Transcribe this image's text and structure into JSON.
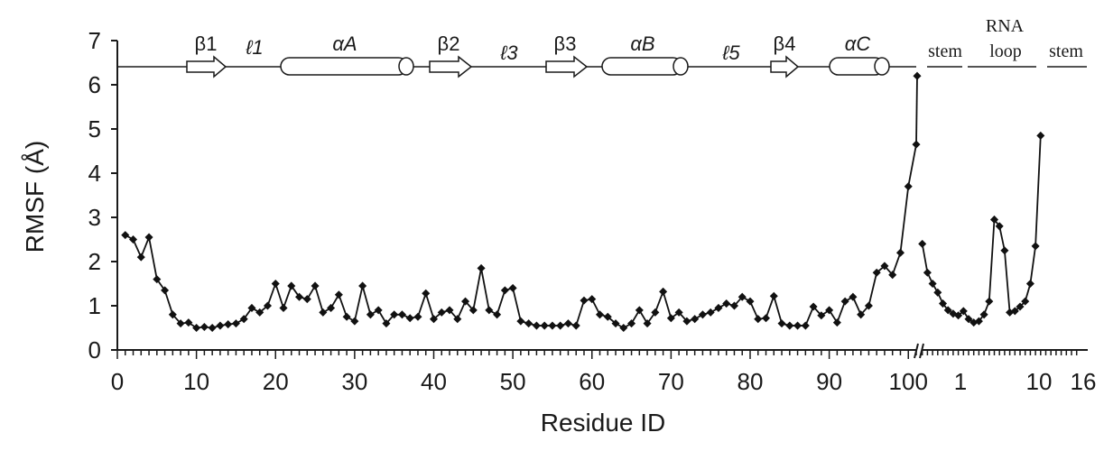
{
  "chart_data": {
    "type": "line",
    "ylabel": "RMSF (Å)",
    "xlabel": "Residue ID",
    "ylim": [
      0,
      7
    ],
    "yticks": [
      0,
      1,
      2,
      3,
      4,
      5,
      6,
      7
    ],
    "grid": false,
    "protein": {
      "xlim": [
        0,
        101
      ],
      "xticks": [
        0,
        10,
        20,
        30,
        40,
        50,
        60,
        70,
        80,
        90,
        100
      ],
      "x": [
        1,
        2,
        3,
        4,
        5,
        6,
        7,
        8,
        9,
        10,
        11,
        12,
        13,
        14,
        15,
        16,
        17,
        18,
        19,
        20,
        21,
        22,
        23,
        24,
        25,
        26,
        27,
        28,
        29,
        30,
        31,
        32,
        33,
        34,
        35,
        36,
        37,
        38,
        39,
        40,
        41,
        42,
        43,
        44,
        45,
        46,
        47,
        48,
        49,
        50,
        51,
        52,
        53,
        54,
        55,
        56,
        57,
        58,
        59,
        60,
        61,
        62,
        63,
        64,
        65,
        66,
        67,
        68,
        69,
        70,
        71,
        72,
        73,
        74,
        75,
        76,
        77,
        78,
        79,
        80,
        81,
        82,
        83,
        84,
        85,
        86,
        87,
        88,
        89,
        90,
        91,
        92,
        93,
        94,
        95,
        96,
        97,
        98,
        99,
        100,
        101
      ],
      "y": [
        2.6,
        2.5,
        2.1,
        2.55,
        1.6,
        1.35,
        0.8,
        0.6,
        0.62,
        0.5,
        0.52,
        0.5,
        0.55,
        0.58,
        0.6,
        0.7,
        0.95,
        0.85,
        1.0,
        1.5,
        0.95,
        1.45,
        1.2,
        1.15,
        1.45,
        0.85,
        0.95,
        1.25,
        0.75,
        0.65,
        1.45,
        0.8,
        0.9,
        0.6,
        0.8,
        0.8,
        0.72,
        0.75,
        1.28,
        0.7,
        0.85,
        0.9,
        0.7,
        1.1,
        0.9,
        1.85,
        0.9,
        0.8,
        1.35,
        1.4,
        0.65,
        0.6,
        0.55,
        0.55,
        0.55,
        0.55,
        0.6,
        0.55,
        1.12,
        1.15,
        0.8,
        0.75,
        0.6,
        0.5,
        0.6,
        0.9,
        0.6,
        0.85,
        1.32,
        0.72,
        0.85,
        0.65,
        0.7,
        0.8,
        0.85,
        0.95,
        1.05,
        1.0,
        1.2,
        1.1,
        0.7,
        0.72,
        1.22,
        0.6,
        0.55,
        0.55,
        0.55,
        0.98,
        0.78,
        0.9,
        0.62,
        1.1,
        1.2,
        0.8,
        1.0,
        1.75,
        1.9,
        1.7,
        2.2,
        3.7,
        4.65
      ]
    },
    "rna": {
      "xticks": [
        1,
        10,
        16
      ],
      "x": [
        1,
        2,
        3,
        4,
        5,
        6,
        7,
        8,
        9,
        10,
        11,
        12,
        13,
        14,
        15,
        16,
        17,
        18,
        19,
        20,
        21,
        22,
        23,
        24,
        25,
        26,
        27,
        28,
        29,
        30,
        31,
        32
      ],
      "y": [
        6.2,
        2.4,
        1.75,
        1.5,
        1.3,
        1.05,
        0.9,
        0.82,
        0.78,
        0.88,
        0.7,
        0.62,
        0.65,
        0.8,
        1.1,
        2.95,
        2.8,
        2.25,
        0.85,
        0.88,
        0.98,
        1.1,
        1.5,
        2.35,
        4.85,
        null,
        null,
        null,
        null,
        null,
        null,
        null
      ]
    },
    "protein_ss_labels": {
      "beta1": "β1",
      "loop1": "ℓ1",
      "alphaA": "αA",
      "beta2": "β2",
      "loop3": "ℓ3",
      "beta3": "β3",
      "alphaB": "αB",
      "loop5": "ℓ5",
      "beta4": "β4",
      "alphaC": "αC"
    },
    "rna_ss_labels": {
      "rna": "RNA",
      "stem_left": "stem",
      "loop": "loop",
      "stem_right": "stem"
    }
  }
}
